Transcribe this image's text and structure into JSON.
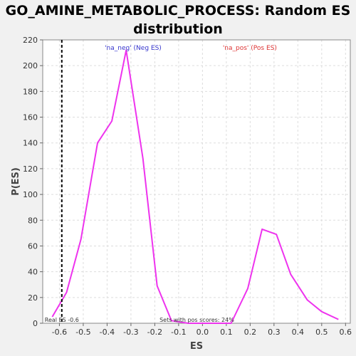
{
  "chart_data": {
    "type": "line",
    "title_line1": "GO_AMINE_METABOLIC_PROCESS: Random ES",
    "title_line2": "distribution",
    "xlabel": "ES",
    "ylabel": "P(ES)",
    "xlim": [
      -0.67,
      0.62
    ],
    "ylim": [
      0,
      220
    ],
    "x_ticks": [
      -0.6,
      -0.5,
      -0.4,
      -0.3,
      -0.2,
      -0.1,
      0.0,
      0.1,
      0.2,
      0.3,
      0.4,
      0.5,
      0.6
    ],
    "y_ticks": [
      0,
      20,
      40,
      60,
      80,
      100,
      120,
      140,
      160,
      180,
      200,
      220
    ],
    "grid": true,
    "series": [
      {
        "color": "#ee33ee",
        "points": [
          [
            -0.63,
            5
          ],
          [
            -0.57,
            24
          ],
          [
            -0.51,
            65
          ],
          [
            -0.44,
            140
          ],
          [
            -0.38,
            157
          ],
          [
            -0.32,
            212
          ],
          [
            -0.25,
            128
          ],
          [
            -0.19,
            29
          ],
          [
            -0.13,
            2
          ],
          [
            -0.06,
            0
          ],
          [
            0.0,
            0
          ],
          [
            0.06,
            0
          ],
          [
            0.12,
            0
          ],
          [
            0.19,
            27
          ],
          [
            0.25,
            73
          ],
          [
            0.31,
            69
          ],
          [
            0.37,
            38
          ],
          [
            0.44,
            18
          ],
          [
            0.5,
            9
          ],
          [
            0.57,
            3
          ]
        ]
      }
    ],
    "legend": [
      {
        "label": "'na_neg' (Neg ES)",
        "color": "#3333cc"
      },
      {
        "label": "'na_pos' (Pos ES)",
        "color": "#dd3333"
      }
    ],
    "real_es": {
      "value": -0.59,
      "label": "Real ES -0.6"
    },
    "footer_note": "Sets with pos scores: 24%"
  }
}
